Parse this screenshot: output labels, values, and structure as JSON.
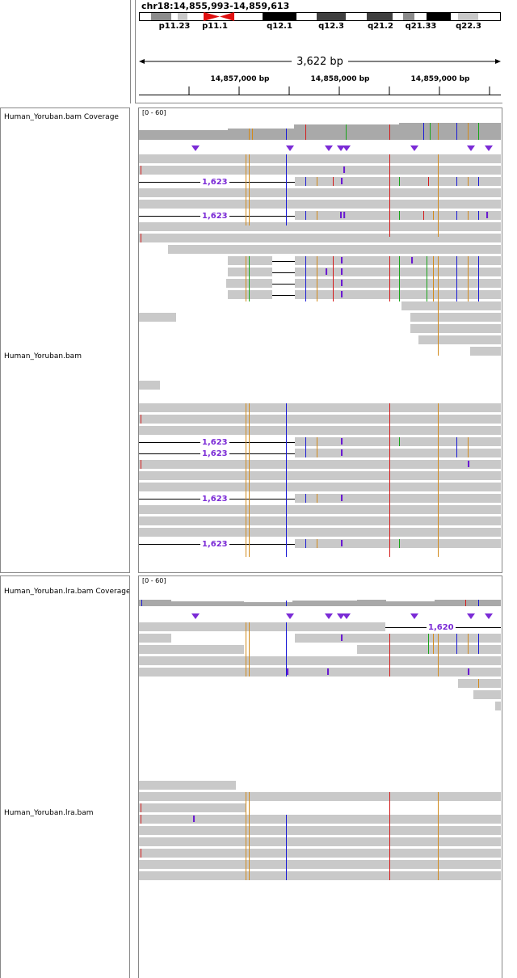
{
  "ruler": {
    "locus": "chr18:14,855,993-14,859,613",
    "bands": [
      "p11.23",
      "p11.1",
      "q12.1",
      "q12.3",
      "q21.2",
      "q21.33",
      "q22.3"
    ],
    "span": "3,622 bp",
    "ticks": [
      "14,857,000 bp",
      "14,858,000 bp",
      "14,859,000 bp"
    ]
  },
  "tracks": {
    "coverage1": {
      "name": "Human_Yoruban.bam Coverage",
      "range": "[0 - 60]"
    },
    "alignment1": {
      "name": "Human_Yoruban.bam"
    },
    "coverage2": {
      "name": "Human_Yoruban.lra.bam Coverage",
      "range": "[0 - 60]"
    },
    "alignment2": {
      "name": "Human_Yoruban.lra.bam"
    }
  },
  "deletion_labels": {
    "d1623": "1,623",
    "d1620": "1,620"
  },
  "colors": {
    "read": "#c9c9c9",
    "insertion": "#6a1bd1",
    "deletion_label": "#7b2bd6",
    "mismatch_a": "#1aa51a",
    "mismatch_c": "#1c1cd6",
    "mismatch_g": "#d18a1c",
    "mismatch_t": "#d41c1c",
    "centromere": "#e01010"
  }
}
